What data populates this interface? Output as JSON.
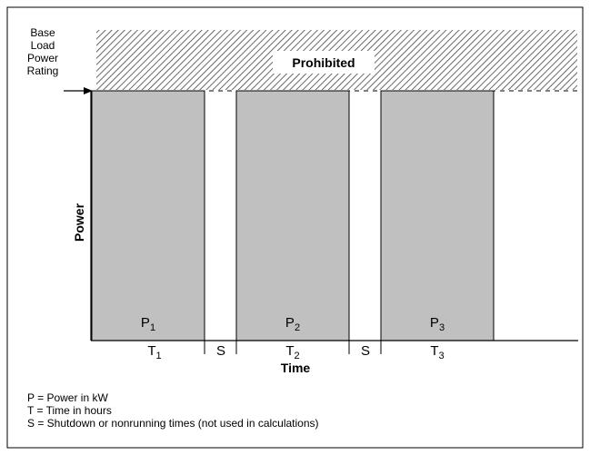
{
  "rating_label": [
    "Base",
    "Load",
    "Power",
    "Rating"
  ],
  "prohibited_label": "Prohibited",
  "y_axis_label": "Power",
  "x_axis_label": "Time",
  "blocks": [
    {
      "power": "P",
      "power_sub": "1",
      "time": "T",
      "time_sub": "1"
    },
    {
      "power": "P",
      "power_sub": "2",
      "time": "T",
      "time_sub": "2"
    },
    {
      "power": "P",
      "power_sub": "3",
      "time": "T",
      "time_sub": "3"
    }
  ],
  "shutdowns": [
    "S",
    "S"
  ],
  "legend": [
    "P = Power in kW",
    "T = Time in hours",
    "S = Shutdown or nonrunning times (not used in calculations)"
  ]
}
